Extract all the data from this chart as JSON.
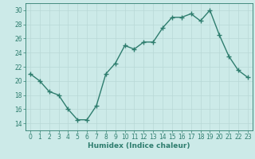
{
  "x": [
    0,
    1,
    2,
    3,
    4,
    5,
    6,
    7,
    8,
    9,
    10,
    11,
    12,
    13,
    14,
    15,
    16,
    17,
    18,
    19,
    20,
    21,
    22,
    23
  ],
  "y": [
    21,
    20,
    18.5,
    18,
    16,
    14.5,
    14.5,
    16.5,
    21,
    22.5,
    25,
    24.5,
    25.5,
    25.5,
    27.5,
    29,
    29,
    29.5,
    28.5,
    30,
    26.5,
    23.5,
    21.5,
    20.5
  ],
  "line_color": "#2e7d6e",
  "marker": "+",
  "marker_size": 4,
  "bg_color": "#cceae8",
  "grid_color": "#b8d8d6",
  "xlabel": "Humidex (Indice chaleur)",
  "ylim": [
    13,
    31
  ],
  "yticks": [
    14,
    16,
    18,
    20,
    22,
    24,
    26,
    28,
    30
  ],
  "xlim": [
    -0.5,
    23.5
  ],
  "xticks": [
    0,
    1,
    2,
    3,
    4,
    5,
    6,
    7,
    8,
    9,
    10,
    11,
    12,
    13,
    14,
    15,
    16,
    17,
    18,
    19,
    20,
    21,
    22,
    23
  ],
  "tick_label_fontsize": 5.5,
  "xlabel_fontsize": 6.5,
  "line_width": 1.0
}
